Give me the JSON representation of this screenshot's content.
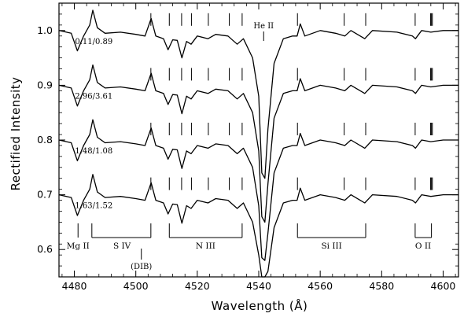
{
  "chart_data": {
    "type": "line",
    "xlabel": "Wavelength (Å)",
    "ylabel": "Rectified Intensity",
    "xlim": [
      4475,
      4605
    ],
    "ylim": [
      0.55,
      1.05
    ],
    "x_ticks": [
      4480,
      4500,
      4520,
      4540,
      4560,
      4580,
      4600
    ],
    "y_ticks": [
      0.6,
      0.7,
      0.8,
      0.9,
      1.0
    ],
    "grid": false,
    "series": [
      {
        "offset": 1.0,
        "label": "0.11/0.89",
        "points": [
          [
            4475,
            1.0
          ],
          [
            4479,
            0.995
          ],
          [
            4481,
            0.963
          ],
          [
            4483,
            0.99
          ],
          [
            4485,
            1.01
          ],
          [
            4486,
            1.037
          ],
          [
            4487.5,
            1.005
          ],
          [
            4490,
            0.995
          ],
          [
            4495,
            0.997
          ],
          [
            4500,
            0.993
          ],
          [
            4503,
            0.99
          ],
          [
            4505,
            1.022
          ],
          [
            4506.5,
            0.99
          ],
          [
            4509,
            0.985
          ],
          [
            4510.5,
            0.965
          ],
          [
            4512,
            0.983
          ],
          [
            4513.5,
            0.982
          ],
          [
            4515,
            0.95
          ],
          [
            4516.5,
            0.98
          ],
          [
            4518,
            0.975
          ],
          [
            4520,
            0.99
          ],
          [
            4523.5,
            0.985
          ],
          [
            4526,
            0.993
          ],
          [
            4530,
            0.99
          ],
          [
            4533,
            0.975
          ],
          [
            4535,
            0.985
          ],
          [
            4538,
            0.95
          ],
          [
            4540,
            0.88
          ],
          [
            4541,
            0.74
          ],
          [
            4542,
            0.73
          ],
          [
            4543,
            0.82
          ],
          [
            4545,
            0.94
          ],
          [
            4548,
            0.985
          ],
          [
            4551,
            0.99
          ],
          [
            4552.5,
            0.99
          ],
          [
            4553.5,
            1.012
          ],
          [
            4555,
            0.99
          ],
          [
            4560,
            1.0
          ],
          [
            4565,
            0.995
          ],
          [
            4568,
            0.99
          ],
          [
            4570,
            1.0
          ],
          [
            4574.5,
            0.985
          ],
          [
            4577,
            1.0
          ],
          [
            4585,
            0.997
          ],
          [
            4590,
            0.99
          ],
          [
            4591,
            0.985
          ],
          [
            4593,
            1.0
          ],
          [
            4596,
            0.997
          ],
          [
            4600,
            1.0
          ],
          [
            4605,
            1.0
          ]
        ]
      },
      {
        "offset": 0.9,
        "label": "2.96/3.61",
        "points": [
          [
            4475,
            0.9
          ],
          [
            4479,
            0.895
          ],
          [
            4481,
            0.862
          ],
          [
            4483,
            0.89
          ],
          [
            4485,
            0.91
          ],
          [
            4486,
            0.937
          ],
          [
            4487.5,
            0.905
          ],
          [
            4490,
            0.895
          ],
          [
            4495,
            0.897
          ],
          [
            4500,
            0.893
          ],
          [
            4503,
            0.89
          ],
          [
            4505,
            0.922
          ],
          [
            4506.5,
            0.89
          ],
          [
            4509,
            0.885
          ],
          [
            4510.5,
            0.865
          ],
          [
            4512,
            0.883
          ],
          [
            4513.5,
            0.882
          ],
          [
            4515,
            0.848
          ],
          [
            4516.5,
            0.88
          ],
          [
            4518,
            0.875
          ],
          [
            4520,
            0.89
          ],
          [
            4523.5,
            0.885
          ],
          [
            4526,
            0.893
          ],
          [
            4530,
            0.89
          ],
          [
            4533,
            0.875
          ],
          [
            4535,
            0.885
          ],
          [
            4538,
            0.85
          ],
          [
            4540,
            0.78
          ],
          [
            4541,
            0.66
          ],
          [
            4542,
            0.65
          ],
          [
            4543,
            0.72
          ],
          [
            4545,
            0.84
          ],
          [
            4548,
            0.885
          ],
          [
            4551,
            0.89
          ],
          [
            4552.5,
            0.89
          ],
          [
            4553.5,
            0.912
          ],
          [
            4555,
            0.89
          ],
          [
            4560,
            0.9
          ],
          [
            4565,
            0.895
          ],
          [
            4568,
            0.89
          ],
          [
            4570,
            0.9
          ],
          [
            4574.5,
            0.885
          ],
          [
            4577,
            0.9
          ],
          [
            4585,
            0.897
          ],
          [
            4590,
            0.89
          ],
          [
            4591,
            0.885
          ],
          [
            4593,
            0.9
          ],
          [
            4596,
            0.897
          ],
          [
            4600,
            0.9
          ],
          [
            4605,
            0.9
          ]
        ]
      },
      {
        "offset": 0.8,
        "label": "1.48/1.08",
        "points": [
          [
            4475,
            0.8
          ],
          [
            4479,
            0.795
          ],
          [
            4481,
            0.762
          ],
          [
            4483,
            0.79
          ],
          [
            4485,
            0.81
          ],
          [
            4486,
            0.837
          ],
          [
            4487.5,
            0.805
          ],
          [
            4490,
            0.795
          ],
          [
            4495,
            0.797
          ],
          [
            4500,
            0.793
          ],
          [
            4503,
            0.79
          ],
          [
            4505,
            0.822
          ],
          [
            4506.5,
            0.79
          ],
          [
            4509,
            0.785
          ],
          [
            4510.5,
            0.765
          ],
          [
            4512,
            0.783
          ],
          [
            4513.5,
            0.782
          ],
          [
            4515,
            0.748
          ],
          [
            4516.5,
            0.78
          ],
          [
            4518,
            0.775
          ],
          [
            4520,
            0.79
          ],
          [
            4523.5,
            0.785
          ],
          [
            4526,
            0.793
          ],
          [
            4530,
            0.79
          ],
          [
            4533,
            0.775
          ],
          [
            4535,
            0.785
          ],
          [
            4538,
            0.75
          ],
          [
            4540,
            0.68
          ],
          [
            4541,
            0.585
          ],
          [
            4542,
            0.58
          ],
          [
            4543,
            0.63
          ],
          [
            4545,
            0.74
          ],
          [
            4548,
            0.785
          ],
          [
            4551,
            0.79
          ],
          [
            4552.5,
            0.79
          ],
          [
            4553.5,
            0.812
          ],
          [
            4555,
            0.79
          ],
          [
            4560,
            0.8
          ],
          [
            4565,
            0.795
          ],
          [
            4568,
            0.79
          ],
          [
            4570,
            0.8
          ],
          [
            4574.5,
            0.785
          ],
          [
            4577,
            0.8
          ],
          [
            4585,
            0.797
          ],
          [
            4590,
            0.79
          ],
          [
            4591,
            0.785
          ],
          [
            4593,
            0.8
          ],
          [
            4596,
            0.797
          ],
          [
            4600,
            0.8
          ],
          [
            4605,
            0.8
          ]
        ]
      },
      {
        "offset": 0.7,
        "label": "1.63/1.52",
        "points": [
          [
            4475,
            0.7
          ],
          [
            4479,
            0.695
          ],
          [
            4481,
            0.662
          ],
          [
            4483,
            0.69
          ],
          [
            4485,
            0.71
          ],
          [
            4486,
            0.737
          ],
          [
            4487.5,
            0.705
          ],
          [
            4490,
            0.695
          ],
          [
            4495,
            0.697
          ],
          [
            4500,
            0.693
          ],
          [
            4503,
            0.69
          ],
          [
            4505,
            0.722
          ],
          [
            4506.5,
            0.69
          ],
          [
            4509,
            0.685
          ],
          [
            4510.5,
            0.665
          ],
          [
            4512,
            0.683
          ],
          [
            4513.5,
            0.682
          ],
          [
            4515,
            0.648
          ],
          [
            4516.5,
            0.68
          ],
          [
            4518,
            0.675
          ],
          [
            4520,
            0.69
          ],
          [
            4523.5,
            0.685
          ],
          [
            4526,
            0.693
          ],
          [
            4530,
            0.69
          ],
          [
            4533,
            0.675
          ],
          [
            4535,
            0.685
          ],
          [
            4538,
            0.65
          ],
          [
            4540,
            0.59
          ],
          [
            4541,
            0.55
          ],
          [
            4542,
            0.55
          ],
          [
            4543,
            0.56
          ],
          [
            4545,
            0.64
          ],
          [
            4548,
            0.685
          ],
          [
            4551,
            0.69
          ],
          [
            4552.5,
            0.69
          ],
          [
            4553.5,
            0.712
          ],
          [
            4555,
            0.69
          ],
          [
            4560,
            0.7
          ],
          [
            4565,
            0.695
          ],
          [
            4568,
            0.69
          ],
          [
            4570,
            0.7
          ],
          [
            4574.5,
            0.685
          ],
          [
            4577,
            0.7
          ],
          [
            4585,
            0.697
          ],
          [
            4590,
            0.69
          ],
          [
            4591,
            0.685
          ],
          [
            4593,
            0.7
          ],
          [
            4596,
            0.697
          ],
          [
            4600,
            0.7
          ],
          [
            4605,
            0.7
          ]
        ]
      }
    ],
    "line_marks": [
      4481.2,
      4486.0,
      4504.9,
      4510.9,
      4514.9,
      4518.1,
      4523.6,
      4530.4,
      4534.6,
      4552.6,
      4567.8,
      4574.8,
      4590.9,
      4595.9,
      4596.2,
      4596.5
    ],
    "annotations": {
      "he_ii": {
        "text": "He II",
        "x": 4541.6
      },
      "dib": {
        "text": "(DIB)",
        "x": 4501.8
      }
    },
    "ion_groups": [
      {
        "label": "Mg II",
        "lines": [
          4481.2
        ],
        "label_x": 4481.2
      },
      {
        "label": "S IV",
        "lines": [
          4485.7,
          4504.9
        ],
        "label_x": 4495.5
      },
      {
        "label": "N III",
        "lines": [
          4510.9,
          4534.6
        ],
        "label_x": 4522.7
      },
      {
        "label": "Si III",
        "lines": [
          4552.6,
          4574.8
        ],
        "label_x": 4563.7
      },
      {
        "label": "O II",
        "lines": [
          4590.9,
          4596.2
        ],
        "label_x": 4593.5
      }
    ]
  }
}
